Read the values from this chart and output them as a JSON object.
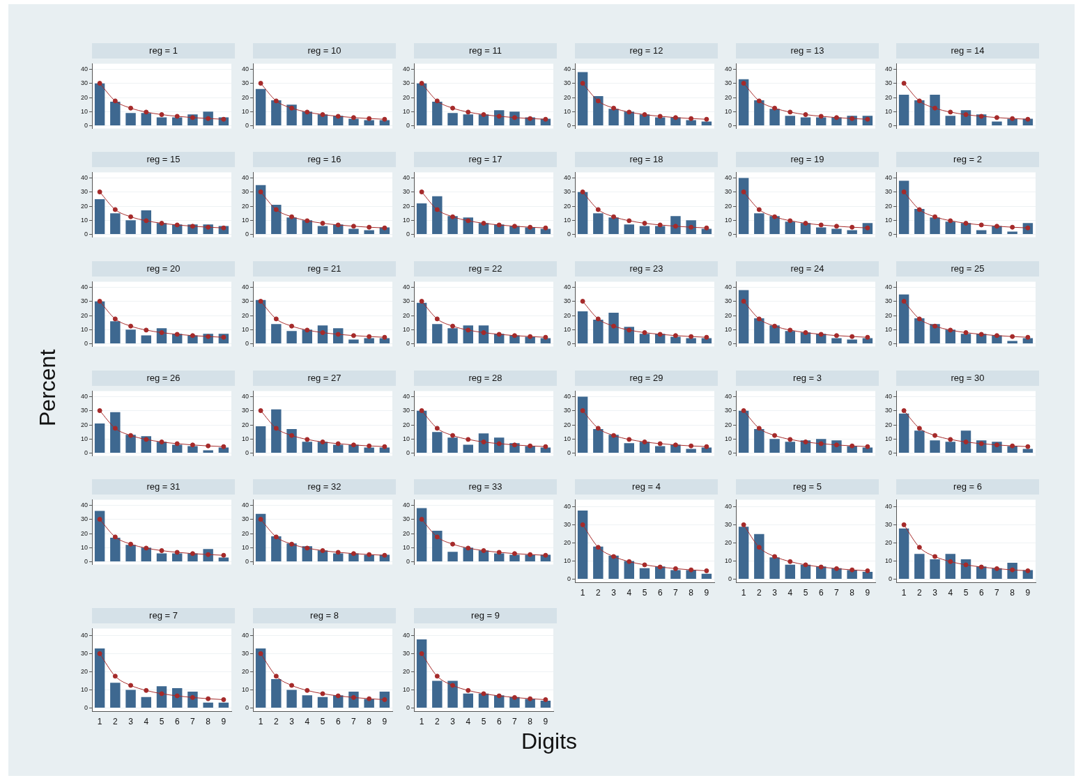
{
  "chart_data": [
    {
      "type": "bar",
      "title": "reg = 1",
      "annotations": [
        "Percent",
        "Digits"
      ],
      "categories": [
        "1",
        "2",
        "3",
        "4",
        "5",
        "6",
        "7",
        "8",
        "9"
      ],
      "series": [
        {
          "color": "#3e6890",
          "values": [
            30,
            17,
            9,
            9,
            6,
            6,
            8,
            10,
            6
          ]
        },
        {
          "type": "line",
          "color": "#a52a2a",
          "values": [
            30.1,
            17.6,
            12.5,
            9.7,
            7.9,
            6.7,
            5.8,
            5.1,
            4.6
          ]
        }
      ],
      "ylim": [
        -2,
        44
      ],
      "yticks": [
        0,
        10,
        20,
        30,
        40
      ],
      "grid": "y",
      "marker": "circle",
      "tick_labels": "y"
    },
    {
      "type": "bar",
      "title": "reg = 10",
      "categories": [
        "1",
        "2",
        "3",
        "4",
        "5",
        "6",
        "7",
        "8",
        "9"
      ],
      "series": [
        {
          "color": "#3e6890",
          "values": [
            26,
            18,
            15,
            10,
            8,
            7,
            5,
            4,
            4
          ]
        },
        {
          "type": "line",
          "color": "#a52a2a",
          "values": [
            30.1,
            17.6,
            12.5,
            9.7,
            7.9,
            6.7,
            5.8,
            5.1,
            4.6
          ]
        }
      ],
      "ylim": [
        -2,
        44
      ],
      "yticks": [
        0,
        10,
        20,
        30,
        40
      ],
      "grid": "y",
      "marker": "circle",
      "tick_labels": "y"
    },
    {
      "type": "bar",
      "title": "reg = 11",
      "categories": [
        "1",
        "2",
        "3",
        "4",
        "5",
        "6",
        "7",
        "8",
        "9"
      ],
      "series": [
        {
          "color": "#3e6890",
          "values": [
            30,
            17,
            9,
            8,
            8,
            11,
            10,
            6,
            5
          ]
        },
        {
          "type": "line",
          "color": "#a52a2a",
          "values": [
            30.1,
            17.6,
            12.5,
            9.7,
            7.9,
            6.7,
            5.8,
            5.1,
            4.6
          ]
        }
      ],
      "ylim": [
        -2,
        44
      ],
      "yticks": [
        0,
        10,
        20,
        30,
        40
      ],
      "grid": "y",
      "marker": "circle",
      "tick_labels": "y"
    },
    {
      "type": "bar",
      "title": "reg = 12",
      "categories": [
        "1",
        "2",
        "3",
        "4",
        "5",
        "6",
        "7",
        "8",
        "9"
      ],
      "series": [
        {
          "color": "#3e6890",
          "values": [
            38,
            21,
            12,
            10,
            8,
            6,
            6,
            4,
            3
          ]
        },
        {
          "type": "line",
          "color": "#a52a2a",
          "values": [
            30.1,
            17.6,
            12.5,
            9.7,
            7.9,
            6.7,
            5.8,
            5.1,
            4.6
          ]
        }
      ],
      "ylim": [
        -2,
        44
      ],
      "yticks": [
        0,
        10,
        20,
        30,
        40
      ],
      "grid": "y",
      "marker": "circle",
      "tick_labels": "y"
    },
    {
      "type": "bar",
      "title": "reg = 13",
      "categories": [
        "1",
        "2",
        "3",
        "4",
        "5",
        "6",
        "7",
        "8",
        "9"
      ],
      "series": [
        {
          "color": "#3e6890",
          "values": [
            33,
            18,
            12,
            7,
            6,
            6,
            6,
            7,
            7
          ]
        },
        {
          "type": "line",
          "color": "#a52a2a",
          "values": [
            30.1,
            17.6,
            12.5,
            9.7,
            7.9,
            6.7,
            5.8,
            5.1,
            4.6
          ]
        }
      ],
      "ylim": [
        -2,
        44
      ],
      "yticks": [
        0,
        10,
        20,
        30,
        40
      ],
      "grid": "y",
      "marker": "circle",
      "tick_labels": "y"
    },
    {
      "type": "bar",
      "title": "reg = 14",
      "categories": [
        "1",
        "2",
        "3",
        "4",
        "5",
        "6",
        "7",
        "8",
        "9"
      ],
      "series": [
        {
          "color": "#3e6890",
          "values": [
            22,
            18,
            22,
            7,
            11,
            8,
            3,
            5,
            5
          ]
        },
        {
          "type": "line",
          "color": "#a52a2a",
          "values": [
            30.1,
            17.6,
            12.5,
            9.7,
            7.9,
            6.7,
            5.8,
            5.1,
            4.6
          ]
        }
      ],
      "ylim": [
        -2,
        44
      ],
      "yticks": [
        0,
        10,
        20,
        30,
        40
      ],
      "grid": "y",
      "marker": "circle",
      "tick_labels": "y"
    },
    {
      "type": "bar",
      "title": "reg = 15",
      "categories": [
        "1",
        "2",
        "3",
        "4",
        "5",
        "6",
        "7",
        "8",
        "9"
      ],
      "series": [
        {
          "color": "#3e6890",
          "values": [
            25,
            15,
            10,
            17,
            8,
            7,
            7,
            7,
            6
          ]
        },
        {
          "type": "line",
          "color": "#a52a2a",
          "values": [
            30.1,
            17.6,
            12.5,
            9.7,
            7.9,
            6.7,
            5.8,
            5.1,
            4.6
          ]
        }
      ],
      "ylim": [
        -2,
        44
      ],
      "yticks": [
        0,
        10,
        20,
        30,
        40
      ],
      "grid": "y",
      "marker": "circle",
      "tick_labels": "y"
    },
    {
      "type": "bar",
      "title": "reg = 16",
      "categories": [
        "1",
        "2",
        "3",
        "4",
        "5",
        "6",
        "7",
        "8",
        "9"
      ],
      "series": [
        {
          "color": "#3e6890",
          "values": [
            35,
            21,
            12,
            10,
            6,
            7,
            4,
            3,
            5
          ]
        },
        {
          "type": "line",
          "color": "#a52a2a",
          "values": [
            30.1,
            17.6,
            12.5,
            9.7,
            7.9,
            6.7,
            5.8,
            5.1,
            4.6
          ]
        }
      ],
      "ylim": [
        -2,
        44
      ],
      "yticks": [
        0,
        10,
        20,
        30,
        40
      ],
      "grid": "y",
      "marker": "circle",
      "tick_labels": "y"
    },
    {
      "type": "bar",
      "title": "reg = 17",
      "categories": [
        "1",
        "2",
        "3",
        "4",
        "5",
        "6",
        "7",
        "8",
        "9"
      ],
      "series": [
        {
          "color": "#3e6890",
          "values": [
            22,
            27,
            13,
            12,
            8,
            7,
            6,
            5,
            4
          ]
        },
        {
          "type": "line",
          "color": "#a52a2a",
          "values": [
            30.1,
            17.6,
            12.5,
            9.7,
            7.9,
            6.7,
            5.8,
            5.1,
            4.6
          ]
        }
      ],
      "ylim": [
        -2,
        44
      ],
      "yticks": [
        0,
        10,
        20,
        30,
        40
      ],
      "grid": "y",
      "marker": "circle",
      "tick_labels": "y"
    },
    {
      "type": "bar",
      "title": "reg = 18",
      "categories": [
        "1",
        "2",
        "3",
        "4",
        "5",
        "6",
        "7",
        "8",
        "9"
      ],
      "series": [
        {
          "color": "#3e6890",
          "values": [
            30,
            15,
            12,
            7,
            6,
            6,
            13,
            10,
            4
          ]
        },
        {
          "type": "line",
          "color": "#a52a2a",
          "values": [
            30.1,
            17.6,
            12.5,
            9.7,
            7.9,
            6.7,
            5.8,
            5.1,
            4.6
          ]
        }
      ],
      "ylim": [
        -2,
        44
      ],
      "yticks": [
        0,
        10,
        20,
        30,
        40
      ],
      "grid": "y",
      "marker": "circle",
      "tick_labels": "y"
    },
    {
      "type": "bar",
      "title": "reg = 19",
      "categories": [
        "1",
        "2",
        "3",
        "4",
        "5",
        "6",
        "7",
        "8",
        "9"
      ],
      "series": [
        {
          "color": "#3e6890",
          "values": [
            40,
            15,
            13,
            9,
            8,
            5,
            4,
            3,
            8
          ]
        },
        {
          "type": "line",
          "color": "#a52a2a",
          "values": [
            30.1,
            17.6,
            12.5,
            9.7,
            7.9,
            6.7,
            5.8,
            5.1,
            4.6
          ]
        }
      ],
      "ylim": [
        -2,
        44
      ],
      "yticks": [
        0,
        10,
        20,
        30,
        40
      ],
      "grid": "y",
      "marker": "circle",
      "tick_labels": "y"
    },
    {
      "type": "bar",
      "title": "reg = 2",
      "categories": [
        "1",
        "2",
        "3",
        "4",
        "5",
        "6",
        "7",
        "8",
        "9"
      ],
      "series": [
        {
          "color": "#3e6890",
          "values": [
            38,
            18,
            12,
            9,
            8,
            3,
            6,
            2,
            8
          ]
        },
        {
          "type": "line",
          "color": "#a52a2a",
          "values": [
            30.1,
            17.6,
            12.5,
            9.7,
            7.9,
            6.7,
            5.8,
            5.1,
            4.6
          ]
        }
      ],
      "ylim": [
        -2,
        44
      ],
      "yticks": [
        0,
        10,
        20,
        30,
        40
      ],
      "grid": "y",
      "marker": "circle",
      "tick_labels": "y"
    },
    {
      "type": "bar",
      "title": "reg = 20",
      "categories": [
        "1",
        "2",
        "3",
        "4",
        "5",
        "6",
        "7",
        "8",
        "9"
      ],
      "series": [
        {
          "color": "#3e6890",
          "values": [
            30,
            16,
            10,
            6,
            11,
            7,
            6,
            7,
            7
          ]
        },
        {
          "type": "line",
          "color": "#a52a2a",
          "values": [
            30.1,
            17.6,
            12.5,
            9.7,
            7.9,
            6.7,
            5.8,
            5.1,
            4.6
          ]
        }
      ],
      "ylim": [
        -2,
        44
      ],
      "yticks": [
        0,
        10,
        20,
        30,
        40
      ],
      "grid": "y",
      "marker": "circle",
      "tick_labels": "y"
    },
    {
      "type": "bar",
      "title": "reg = 21",
      "categories": [
        "1",
        "2",
        "3",
        "4",
        "5",
        "6",
        "7",
        "8",
        "9"
      ],
      "series": [
        {
          "color": "#3e6890",
          "values": [
            31,
            14,
            9,
            10,
            13,
            11,
            3,
            4,
            4
          ]
        },
        {
          "type": "line",
          "color": "#a52a2a",
          "values": [
            30.1,
            17.6,
            12.5,
            9.7,
            7.9,
            6.7,
            5.8,
            5.1,
            4.6
          ]
        }
      ],
      "ylim": [
        -2,
        44
      ],
      "yticks": [
        0,
        10,
        20,
        30,
        40
      ],
      "grid": "y",
      "marker": "circle",
      "tick_labels": "y"
    },
    {
      "type": "bar",
      "title": "reg = 22",
      "categories": [
        "1",
        "2",
        "3",
        "4",
        "5",
        "6",
        "7",
        "8",
        "9"
      ],
      "series": [
        {
          "color": "#3e6890",
          "values": [
            29,
            14,
            11,
            13,
            13,
            7,
            6,
            5,
            4
          ]
        },
        {
          "type": "line",
          "color": "#a52a2a",
          "values": [
            30.1,
            17.6,
            12.5,
            9.7,
            7.9,
            6.7,
            5.8,
            5.1,
            4.6
          ]
        }
      ],
      "ylim": [
        -2,
        44
      ],
      "yticks": [
        0,
        10,
        20,
        30,
        40
      ],
      "grid": "y",
      "marker": "circle",
      "tick_labels": "y"
    },
    {
      "type": "bar",
      "title": "reg = 23",
      "categories": [
        "1",
        "2",
        "3",
        "4",
        "5",
        "6",
        "7",
        "8",
        "9"
      ],
      "series": [
        {
          "color": "#3e6890",
          "values": [
            23,
            17,
            22,
            12,
            7,
            7,
            5,
            4,
            4
          ]
        },
        {
          "type": "line",
          "color": "#a52a2a",
          "values": [
            30.1,
            17.6,
            12.5,
            9.7,
            7.9,
            6.7,
            5.8,
            5.1,
            4.6
          ]
        }
      ],
      "ylim": [
        -2,
        44
      ],
      "yticks": [
        0,
        10,
        20,
        30,
        40
      ],
      "grid": "y",
      "marker": "circle",
      "tick_labels": "y"
    },
    {
      "type": "bar",
      "title": "reg = 24",
      "categories": [
        "1",
        "2",
        "3",
        "4",
        "5",
        "6",
        "7",
        "8",
        "9"
      ],
      "series": [
        {
          "color": "#3e6890",
          "values": [
            38,
            18,
            13,
            9,
            8,
            7,
            4,
            3,
            4
          ]
        },
        {
          "type": "line",
          "color": "#a52a2a",
          "values": [
            30.1,
            17.6,
            12.5,
            9.7,
            7.9,
            6.7,
            5.8,
            5.1,
            4.6
          ]
        }
      ],
      "ylim": [
        -2,
        44
      ],
      "yticks": [
        0,
        10,
        20,
        30,
        40
      ],
      "grid": "y",
      "marker": "circle",
      "tick_labels": "y"
    },
    {
      "type": "bar",
      "title": "reg = 25",
      "categories": [
        "1",
        "2",
        "3",
        "4",
        "5",
        "6",
        "7",
        "8",
        "9"
      ],
      "series": [
        {
          "color": "#3e6890",
          "values": [
            35,
            18,
            14,
            10,
            7,
            7,
            6,
            2,
            4
          ]
        },
        {
          "type": "line",
          "color": "#a52a2a",
          "values": [
            30.1,
            17.6,
            12.5,
            9.7,
            7.9,
            6.7,
            5.8,
            5.1,
            4.6
          ]
        }
      ],
      "ylim": [
        -2,
        44
      ],
      "yticks": [
        0,
        10,
        20,
        30,
        40
      ],
      "grid": "y",
      "marker": "circle",
      "tick_labels": "y"
    },
    {
      "type": "bar",
      "title": "reg = 26",
      "categories": [
        "1",
        "2",
        "3",
        "4",
        "5",
        "6",
        "7",
        "8",
        "9"
      ],
      "series": [
        {
          "color": "#3e6890",
          "values": [
            21,
            29,
            13,
            12,
            8,
            6,
            5,
            2,
            4
          ]
        },
        {
          "type": "line",
          "color": "#a52a2a",
          "values": [
            30.1,
            17.6,
            12.5,
            9.7,
            7.9,
            6.7,
            5.8,
            5.1,
            4.6
          ]
        }
      ],
      "ylim": [
        -2,
        44
      ],
      "yticks": [
        0,
        10,
        20,
        30,
        40
      ],
      "grid": "y",
      "marker": "circle",
      "tick_labels": "y"
    },
    {
      "type": "bar",
      "title": "reg = 27",
      "categories": [
        "1",
        "2",
        "3",
        "4",
        "5",
        "6",
        "7",
        "8",
        "9"
      ],
      "series": [
        {
          "color": "#3e6890",
          "values": [
            19,
            31,
            17,
            8,
            8,
            6,
            6,
            4,
            4
          ]
        },
        {
          "type": "line",
          "color": "#a52a2a",
          "values": [
            30.1,
            17.6,
            12.5,
            9.7,
            7.9,
            6.7,
            5.8,
            5.1,
            4.6
          ]
        }
      ],
      "ylim": [
        -2,
        44
      ],
      "yticks": [
        0,
        10,
        20,
        30,
        40
      ],
      "grid": "y",
      "marker": "circle",
      "tick_labels": "y"
    },
    {
      "type": "bar",
      "title": "reg = 28",
      "categories": [
        "1",
        "2",
        "3",
        "4",
        "5",
        "6",
        "7",
        "8",
        "9"
      ],
      "series": [
        {
          "color": "#3e6890",
          "values": [
            30,
            15,
            11,
            6,
            14,
            11,
            7,
            5,
            4
          ]
        },
        {
          "type": "line",
          "color": "#a52a2a",
          "values": [
            30.1,
            17.6,
            12.5,
            9.7,
            7.9,
            6.7,
            5.8,
            5.1,
            4.6
          ]
        }
      ],
      "ylim": [
        -2,
        44
      ],
      "yticks": [
        0,
        10,
        20,
        30,
        40
      ],
      "grid": "y",
      "marker": "circle",
      "tick_labels": "y"
    },
    {
      "type": "bar",
      "title": "reg = 29",
      "categories": [
        "1",
        "2",
        "3",
        "4",
        "5",
        "6",
        "7",
        "8",
        "9"
      ],
      "series": [
        {
          "color": "#3e6890",
          "values": [
            40,
            17,
            13,
            7,
            8,
            5,
            6,
            3,
            4
          ]
        },
        {
          "type": "line",
          "color": "#a52a2a",
          "values": [
            30.1,
            17.6,
            12.5,
            9.7,
            7.9,
            6.7,
            5.8,
            5.1,
            4.6
          ]
        }
      ],
      "ylim": [
        -2,
        44
      ],
      "yticks": [
        0,
        10,
        20,
        30,
        40
      ],
      "grid": "y",
      "marker": "circle",
      "tick_labels": "y"
    },
    {
      "type": "bar",
      "title": "reg = 3",
      "categories": [
        "1",
        "2",
        "3",
        "4",
        "5",
        "6",
        "7",
        "8",
        "9"
      ],
      "series": [
        {
          "color": "#3e6890",
          "values": [
            30,
            17,
            10,
            8,
            9,
            10,
            9,
            5,
            4
          ]
        },
        {
          "type": "line",
          "color": "#a52a2a",
          "values": [
            30.1,
            17.6,
            12.5,
            9.7,
            7.9,
            6.7,
            5.8,
            5.1,
            4.6
          ]
        }
      ],
      "ylim": [
        -2,
        44
      ],
      "yticks": [
        0,
        10,
        20,
        30,
        40
      ],
      "grid": "y",
      "marker": "circle",
      "tick_labels": "y"
    },
    {
      "type": "bar",
      "title": "reg = 30",
      "categories": [
        "1",
        "2",
        "3",
        "4",
        "5",
        "6",
        "7",
        "8",
        "9"
      ],
      "series": [
        {
          "color": "#3e6890",
          "values": [
            28,
            16,
            9,
            8,
            16,
            9,
            8,
            5,
            3
          ]
        },
        {
          "type": "line",
          "color": "#a52a2a",
          "values": [
            30.1,
            17.6,
            12.5,
            9.7,
            7.9,
            6.7,
            5.8,
            5.1,
            4.6
          ]
        }
      ],
      "ylim": [
        -2,
        44
      ],
      "yticks": [
        0,
        10,
        20,
        30,
        40
      ],
      "grid": "y",
      "marker": "circle",
      "tick_labels": "y"
    },
    {
      "type": "bar",
      "title": "reg = 31",
      "categories": [
        "1",
        "2",
        "3",
        "4",
        "5",
        "6",
        "7",
        "8",
        "9"
      ],
      "series": [
        {
          "color": "#3e6890",
          "values": [
            36,
            17,
            12,
            10,
            6,
            6,
            6,
            9,
            3
          ]
        },
        {
          "type": "line",
          "color": "#a52a2a",
          "values": [
            30.1,
            17.6,
            12.5,
            9.7,
            7.9,
            6.7,
            5.8,
            5.1,
            4.6
          ]
        }
      ],
      "ylim": [
        -2,
        44
      ],
      "yticks": [
        0,
        10,
        20,
        30,
        40
      ],
      "grid": "y",
      "marker": "circle",
      "tick_labels": "y"
    },
    {
      "type": "bar",
      "title": "reg = 32",
      "categories": [
        "1",
        "2",
        "3",
        "4",
        "5",
        "6",
        "7",
        "8",
        "9"
      ],
      "series": [
        {
          "color": "#3e6890",
          "values": [
            34,
            18,
            13,
            11,
            8,
            6,
            6,
            5,
            5
          ]
        },
        {
          "type": "line",
          "color": "#a52a2a",
          "values": [
            30.1,
            17.6,
            12.5,
            9.7,
            7.9,
            6.7,
            5.8,
            5.1,
            4.6
          ]
        }
      ],
      "ylim": [
        -2,
        44
      ],
      "yticks": [
        0,
        10,
        20,
        30,
        40
      ],
      "grid": "y",
      "marker": "circle",
      "tick_labels": "y"
    },
    {
      "type": "bar",
      "title": "reg = 33",
      "categories": [
        "1",
        "2",
        "3",
        "4",
        "5",
        "6",
        "7",
        "8",
        "9"
      ],
      "series": [
        {
          "color": "#3e6890",
          "values": [
            38,
            22,
            7,
            10,
            8,
            6,
            5,
            5,
            5
          ]
        },
        {
          "type": "line",
          "color": "#a52a2a",
          "values": [
            30.1,
            17.6,
            12.5,
            9.7,
            7.9,
            6.7,
            5.8,
            5.1,
            4.6
          ]
        }
      ],
      "ylim": [
        -2,
        44
      ],
      "yticks": [
        0,
        10,
        20,
        30,
        40
      ],
      "grid": "y",
      "marker": "circle",
      "tick_labels": "y"
    },
    {
      "type": "bar",
      "title": "reg = 4",
      "categories": [
        "1",
        "2",
        "3",
        "4",
        "5",
        "6",
        "7",
        "8",
        "9"
      ],
      "series": [
        {
          "color": "#3e6890",
          "values": [
            38,
            18,
            13,
            10,
            6,
            7,
            5,
            5,
            3
          ]
        },
        {
          "type": "line",
          "color": "#a52a2a",
          "values": [
            30.1,
            17.6,
            12.5,
            9.7,
            7.9,
            6.7,
            5.8,
            5.1,
            4.6
          ]
        }
      ],
      "ylim": [
        -2,
        44
      ],
      "yticks": [
        0,
        10,
        20,
        30,
        40
      ],
      "grid": "y",
      "marker": "circle"
    },
    {
      "type": "bar",
      "title": "reg = 5",
      "categories": [
        "1",
        "2",
        "3",
        "4",
        "5",
        "6",
        "7",
        "8",
        "9"
      ],
      "series": [
        {
          "color": "#3e6890",
          "values": [
            29,
            25,
            12,
            8,
            8,
            7,
            6,
            5,
            4
          ]
        },
        {
          "type": "line",
          "color": "#a52a2a",
          "values": [
            30.1,
            17.6,
            12.5,
            9.7,
            7.9,
            6.7,
            5.8,
            5.1,
            4.6
          ]
        }
      ],
      "ylim": [
        -2,
        44
      ],
      "yticks": [
        0,
        10,
        20,
        30,
        40
      ],
      "grid": "y",
      "marker": "circle"
    },
    {
      "type": "bar",
      "title": "reg = 6",
      "categories": [
        "1",
        "2",
        "3",
        "4",
        "5",
        "6",
        "7",
        "8",
        "9"
      ],
      "series": [
        {
          "color": "#3e6890",
          "values": [
            28,
            14,
            11,
            14,
            11,
            7,
            6,
            9,
            5
          ]
        },
        {
          "type": "line",
          "color": "#a52a2a",
          "values": [
            30.1,
            17.6,
            12.5,
            9.7,
            7.9,
            6.7,
            5.8,
            5.1,
            4.6
          ]
        }
      ],
      "ylim": [
        -2,
        44
      ],
      "yticks": [
        0,
        10,
        20,
        30,
        40
      ],
      "grid": "y",
      "marker": "circle"
    },
    {
      "type": "bar",
      "title": "reg = 7",
      "categories": [
        "1",
        "2",
        "3",
        "4",
        "5",
        "6",
        "7",
        "8",
        "9"
      ],
      "series": [
        {
          "color": "#3e6890",
          "values": [
            33,
            14,
            10,
            6,
            12,
            11,
            9,
            3,
            3
          ]
        },
        {
          "type": "line",
          "color": "#a52a2a",
          "values": [
            30.1,
            17.6,
            12.5,
            9.7,
            7.9,
            6.7,
            5.8,
            5.1,
            4.6
          ]
        }
      ],
      "ylim": [
        -2,
        44
      ],
      "yticks": [
        0,
        10,
        20,
        30,
        40
      ],
      "grid": "y",
      "marker": "circle"
    },
    {
      "type": "bar",
      "title": "reg = 8",
      "categories": [
        "1",
        "2",
        "3",
        "4",
        "5",
        "6",
        "7",
        "8",
        "9"
      ],
      "series": [
        {
          "color": "#3e6890",
          "values": [
            33,
            16,
            10,
            7,
            6,
            7,
            9,
            5,
            9
          ]
        },
        {
          "type": "line",
          "color": "#a52a2a",
          "values": [
            30.1,
            17.6,
            12.5,
            9.7,
            7.9,
            6.7,
            5.8,
            5.1,
            4.6
          ]
        }
      ],
      "ylim": [
        -2,
        44
      ],
      "yticks": [
        0,
        10,
        20,
        30,
        40
      ],
      "grid": "y",
      "marker": "circle"
    },
    {
      "type": "bar",
      "title": "reg = 9",
      "categories": [
        "1",
        "2",
        "3",
        "4",
        "5",
        "6",
        "7",
        "8",
        "9"
      ],
      "series": [
        {
          "color": "#3e6890",
          "values": [
            38,
            15,
            15,
            8,
            8,
            7,
            6,
            5,
            4
          ]
        },
        {
          "type": "line",
          "color": "#a52a2a",
          "values": [
            30.1,
            17.6,
            12.5,
            9.7,
            7.9,
            6.7,
            5.8,
            5.1,
            4.6
          ]
        }
      ],
      "ylim": [
        -2,
        44
      ],
      "yticks": [
        0,
        10,
        20,
        30,
        40
      ],
      "grid": "y",
      "marker": "circle"
    }
  ]
}
